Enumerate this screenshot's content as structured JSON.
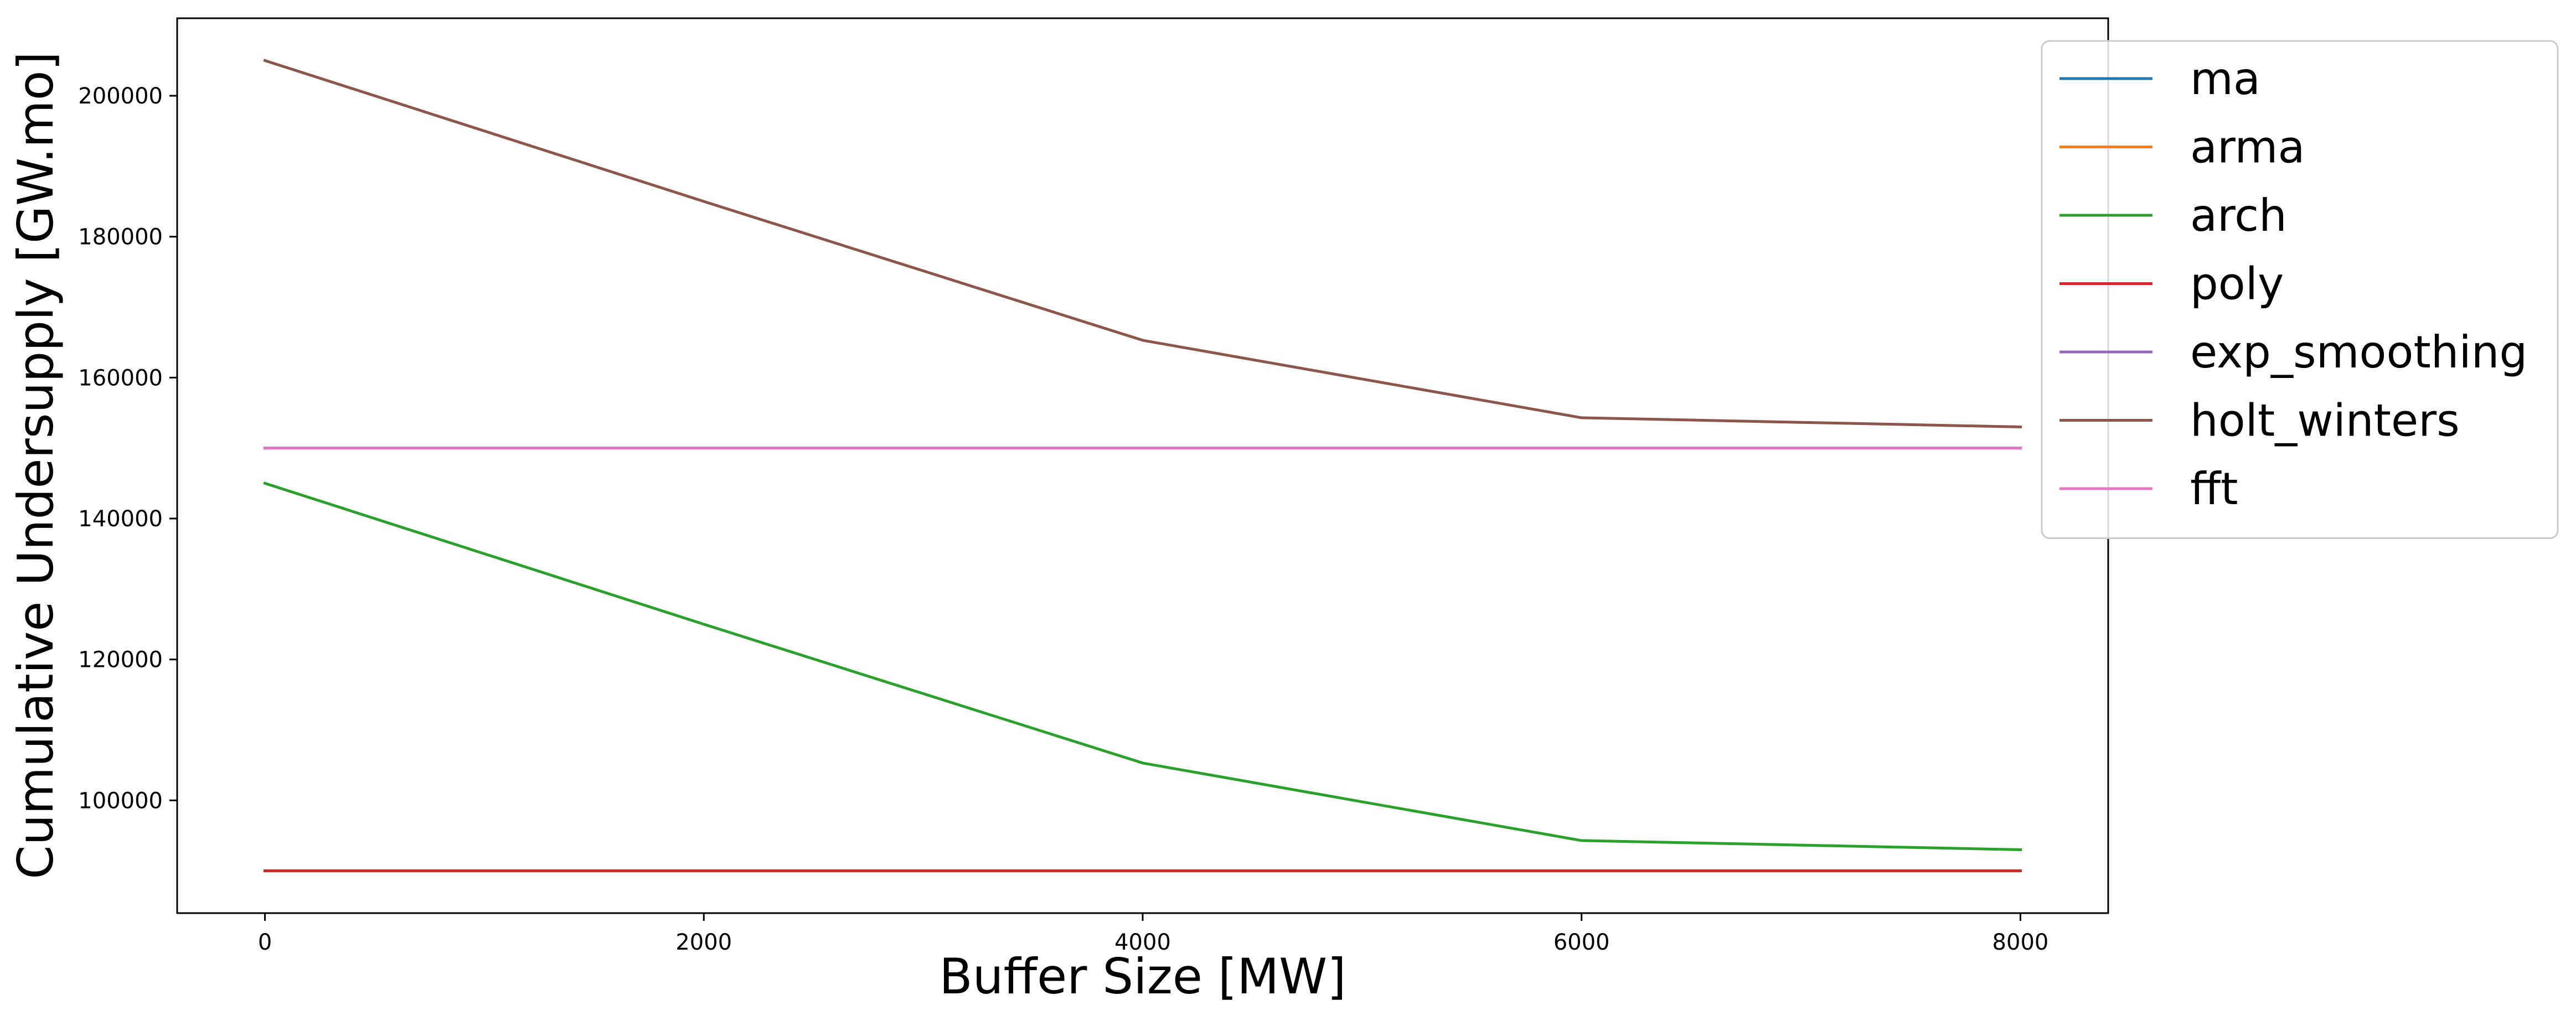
{
  "chart_data": {
    "type": "line",
    "title": "",
    "xlabel": "Buffer Size [MW]",
    "ylabel": "Cumulative Undersupply [GW.mo]",
    "x": [
      0,
      2000,
      4000,
      6000,
      8000
    ],
    "xlim": [
      -400,
      8400
    ],
    "ylim": [
      84000,
      211000
    ],
    "xticks": [
      0,
      2000,
      4000,
      6000,
      8000
    ],
    "xtick_labels": [
      "0",
      "2000",
      "4000",
      "6000",
      "8000"
    ],
    "yticks": [
      100000,
      120000,
      140000,
      160000,
      180000,
      200000
    ],
    "ytick_labels": [
      "100000",
      "120000",
      "140000",
      "160000",
      "180000",
      "200000"
    ],
    "grid": false,
    "legend_position": "top-right",
    "series": [
      {
        "name": "ma",
        "color": "#1f77b4",
        "values": [
          90000,
          90000,
          90000,
          90000,
          90000
        ]
      },
      {
        "name": "arma",
        "color": "#ff7f0e",
        "values": [
          90000,
          90000,
          90000,
          90000,
          90000
        ]
      },
      {
        "name": "arch",
        "color": "#2ca02c",
        "values": [
          145000,
          125000,
          105300,
          94300,
          93000
        ]
      },
      {
        "name": "poly",
        "color": "#d62728",
        "values": [
          90000,
          90000,
          90000,
          90000,
          90000
        ]
      },
      {
        "name": "exp_smoothing",
        "color": "#9467bd",
        "values": [
          150000,
          150000,
          150000,
          150000,
          150000
        ]
      },
      {
        "name": "holt_winters",
        "color": "#8c564b",
        "values": [
          205000,
          185000,
          165300,
          154300,
          153000
        ]
      },
      {
        "name": "fft",
        "color": "#e377c2",
        "values": [
          150000,
          150000,
          150000,
          150000,
          150000
        ]
      }
    ]
  }
}
